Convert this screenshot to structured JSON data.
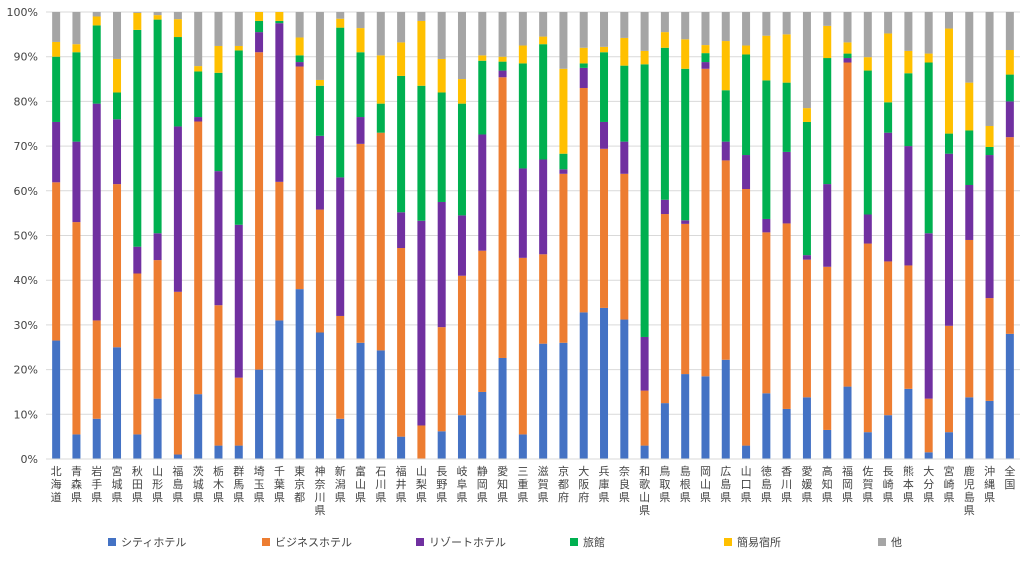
{
  "chart_data": {
    "type": "bar",
    "stacked": true,
    "percent_stacked": true,
    "ylim": [
      0,
      100
    ],
    "y_tick_values": [
      0,
      10,
      20,
      30,
      40,
      50,
      60,
      70,
      80,
      90,
      100
    ],
    "y_tick_labels": [
      "0%",
      "10%",
      "20%",
      "30%",
      "40%",
      "50%",
      "60%",
      "70%",
      "80%",
      "90%",
      "100%"
    ],
    "grid": true,
    "legend_position": "bottom",
    "categories": [
      "北海道",
      "青森県",
      "岩手県",
      "宮城県",
      "秋田県",
      "山形県",
      "福島県",
      "茨城県",
      "栃木県",
      "群馬県",
      "埼玉県",
      "千葉県",
      "東京都",
      "神奈川県",
      "新潟県",
      "富山県",
      "石川県",
      "福井県",
      "山梨県",
      "長野県",
      "岐阜県",
      "静岡県",
      "愛知県",
      "三重県",
      "滋賀県",
      "京都府",
      "大阪府",
      "兵庫県",
      "奈良県",
      "和歌山県",
      "鳥取県",
      "島根県",
      "岡山県",
      "広島県",
      "山口県",
      "徳島県",
      "香川県",
      "愛媛県",
      "高知県",
      "福岡県",
      "佐賀県",
      "長崎県",
      "熊本県",
      "大分県",
      "宮崎県",
      "鹿児島県",
      "沖縄県",
      "全国"
    ],
    "series": [
      {
        "name": "シティホテル",
        "color": "#4472C4",
        "values": [
          26.5,
          5.5,
          9,
          25,
          5.5,
          13.5,
          1,
          14.5,
          3,
          3,
          20,
          31,
          38,
          28.3,
          9,
          26,
          24.3,
          5,
          0,
          6.2,
          9.8,
          15,
          22.6,
          5.5,
          25.8,
          26,
          32.8,
          33.8,
          31.2,
          3,
          12.5,
          19,
          18.5,
          22.2,
          3,
          14.7,
          11.2,
          13.8,
          6.5,
          16.2,
          6,
          9.8,
          15.7,
          1.5,
          6,
          13.8,
          13,
          28
        ]
      },
      {
        "name": "ビジネスホテル",
        "color": "#ED7D31",
        "values": [
          35.4,
          47.5,
          22,
          36.5,
          36,
          31,
          36.4,
          61,
          31.4,
          15.2,
          71,
          31,
          49.8,
          27.5,
          23,
          44.5,
          48.7,
          42.2,
          7.5,
          23.3,
          31.2,
          31.6,
          62.8,
          39.5,
          20,
          37.8,
          50.2,
          35.6,
          32.6,
          12.3,
          42.3,
          33.6,
          68.8,
          44.6,
          57.4,
          36,
          41.5,
          30.8,
          36.5,
          72.5,
          42.2,
          34.4,
          27.6,
          12,
          23.8,
          35.2,
          23,
          44
        ]
      },
      {
        "name": "リゾートホテル",
        "color": "#7030A0",
        "values": [
          13.5,
          18,
          48.5,
          14.5,
          6,
          6,
          37,
          1,
          30,
          34.2,
          4.5,
          35.5,
          1,
          16.5,
          31,
          6,
          0,
          8,
          45.8,
          28,
          13.5,
          26,
          1.5,
          20,
          21.2,
          1,
          4.5,
          6,
          7.2,
          12,
          3.2,
          0.8,
          1.5,
          4.2,
          7.6,
          3,
          16,
          1,
          18.5,
          1,
          6.5,
          28.8,
          26.7,
          37,
          38.5,
          12.3,
          32,
          8
        ]
      },
      {
        "name": "旅館",
        "color": "#00B050",
        "values": [
          14.6,
          20,
          17.5,
          6,
          48.5,
          47.8,
          20,
          10.2,
          22,
          39,
          2.5,
          0.5,
          1.5,
          11.2,
          33.5,
          14.5,
          6.5,
          30.5,
          30.2,
          24.5,
          25,
          16.5,
          2,
          23.5,
          25.8,
          3.5,
          1,
          15.6,
          17,
          61,
          34,
          33.9,
          2,
          11.5,
          22.5,
          31,
          15.5,
          29.8,
          28.2,
          1,
          32.2,
          6.8,
          16.3,
          38.2,
          4.5,
          12.2,
          1.8,
          6
        ]
      },
      {
        "name": "簡易宿所",
        "color": "#FFC000",
        "values": [
          3.3,
          1.8,
          2,
          7.5,
          3.8,
          1,
          4,
          1.2,
          6,
          1,
          2,
          2,
          4,
          1.3,
          2,
          5.4,
          10.8,
          7.5,
          14.5,
          7.5,
          5.5,
          1.2,
          1.1,
          4,
          1.7,
          19,
          3.5,
          1.2,
          6.2,
          3,
          3.5,
          6.6,
          1.8,
          11,
          2,
          10,
          10.8,
          3.1,
          7.2,
          2.5,
          3,
          15.4,
          5,
          2,
          23.5,
          10.7,
          4.7,
          5.5
        ]
      },
      {
        "name": "他",
        "color": "#A5A5A5",
        "values": [
          6.7,
          7.2,
          1,
          10.5,
          0.2,
          0.7,
          1.6,
          12.1,
          7.6,
          7.6,
          0,
          0,
          5.7,
          15.2,
          1.5,
          3.6,
          9.7,
          6.8,
          2,
          10.5,
          15,
          9.7,
          10,
          7.5,
          5.5,
          12.7,
          8,
          7.8,
          5.8,
          8.7,
          4.5,
          6.1,
          7.4,
          6.5,
          7.5,
          5.3,
          5,
          21.5,
          3.1,
          6.8,
          10.1,
          4.8,
          8.7,
          9.3,
          3.7,
          15.8,
          25.5,
          8.5
        ]
      }
    ]
  }
}
